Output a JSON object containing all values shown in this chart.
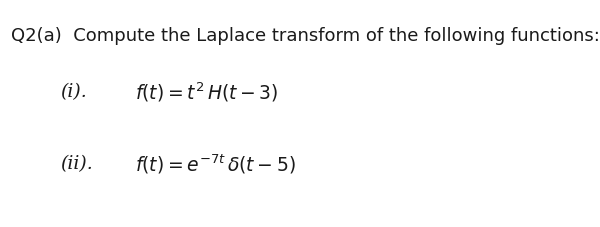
{
  "background_color": "#ffffff",
  "title_text": "Q2(a)  Compute the Laplace transform of the following functions:",
  "title_fontsize": 13.0,
  "title_color": "#1a1a1a",
  "line1_label": "(i).",
  "line1_fontsize": 13.5,
  "line1_formula": "$f(t) = t^2\\, H(t - 3)$",
  "line2_label": "(ii).",
  "line2_fontsize": 13.5,
  "line2_formula": "$f(t) = e^{-7t}\\, \\delta(t - 5)$"
}
